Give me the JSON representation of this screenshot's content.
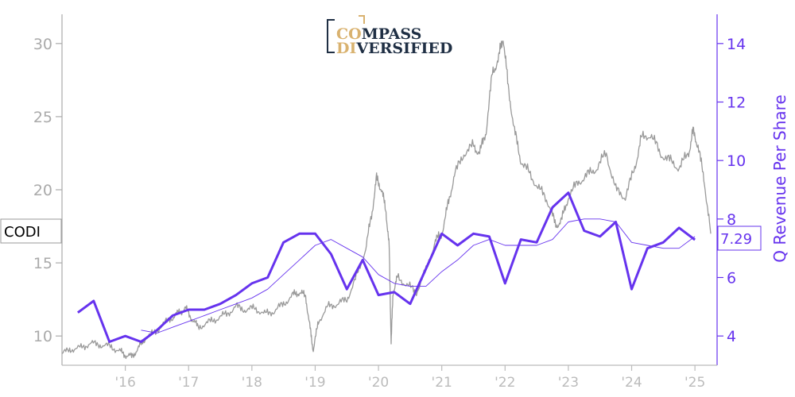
{
  "logo": {
    "line1_a": "CO",
    "line1_b": "MPASS",
    "line2_a": "DI",
    "line2_b": "VERSIFIED"
  },
  "colors": {
    "price": "#999999",
    "revenue": "#6633ee",
    "axis_left": "#aaaaaa",
    "axis_bottom": "#bbbbbb"
  },
  "chart_data": {
    "type": "line",
    "ticker": "CODI",
    "last_value_label": "7.29",
    "ylabel_right": "Q Revenue Per Share",
    "x_range": [
      2015.0,
      2025.35
    ],
    "y_left_range": [
      8.0,
      32.0
    ],
    "y_right_range": [
      3.0,
      15.0
    ],
    "x_ticks": [
      {
        "value": 2016,
        "label": "'16"
      },
      {
        "value": 2017,
        "label": "'17"
      },
      {
        "value": 2018,
        "label": "'18"
      },
      {
        "value": 2019,
        "label": "'19"
      },
      {
        "value": 2020,
        "label": "'20"
      },
      {
        "value": 2021,
        "label": "'21"
      },
      {
        "value": 2022,
        "label": "'22"
      },
      {
        "value": 2023,
        "label": "'23"
      },
      {
        "value": 2024,
        "label": "'24"
      },
      {
        "value": 2025,
        "label": "'25"
      }
    ],
    "y_left_ticks": [
      10,
      15,
      20,
      25,
      30
    ],
    "y_right_ticks": [
      4,
      6,
      8,
      10,
      12,
      14
    ],
    "series": [
      {
        "axis": "left",
        "style": "price",
        "x": [
          2015.0,
          2015.15,
          2015.3,
          2015.45,
          2015.6,
          2015.75,
          2015.9,
          2016.0,
          2016.1,
          2016.2,
          2016.3,
          2016.45,
          2016.6,
          2016.75,
          2016.85,
          2016.95,
          2017.05,
          2017.15,
          2017.3,
          2017.45,
          2017.6,
          2017.75,
          2017.9,
          2018.05,
          2018.2,
          2018.35,
          2018.5,
          2018.65,
          2018.75,
          2018.85,
          2018.92,
          2018.97,
          2019.05,
          2019.2,
          2019.35,
          2019.5,
          2019.65,
          2019.8,
          2019.9,
          2019.97,
          2020.05,
          2020.12,
          2020.17,
          2020.2,
          2020.23,
          2020.3,
          2020.45,
          2020.6,
          2020.75,
          2020.9,
          2021.0,
          2021.1,
          2021.2,
          2021.35,
          2021.5,
          2021.6,
          2021.7,
          2021.8,
          2021.9,
          2021.97,
          2022.05,
          2022.15,
          2022.25,
          2022.4,
          2022.55,
          2022.7,
          2022.8,
          2022.9,
          2023.0,
          2023.15,
          2023.3,
          2023.45,
          2023.6,
          2023.75,
          2023.9,
          2024.05,
          2024.15,
          2024.3,
          2024.45,
          2024.6,
          2024.75,
          2024.9,
          2024.97,
          2025.05,
          2025.15,
          2025.25
        ],
        "y": [
          8.8,
          9.1,
          9.2,
          9.5,
          9.4,
          9.3,
          9.0,
          8.7,
          8.6,
          9.1,
          9.8,
          10.2,
          10.8,
          11.3,
          11.6,
          11.9,
          11.2,
          10.6,
          10.9,
          11.2,
          11.5,
          12.0,
          11.8,
          11.9,
          11.5,
          11.7,
          12.2,
          12.8,
          13.0,
          12.7,
          10.5,
          9.0,
          11.0,
          12.0,
          12.2,
          12.5,
          14.0,
          16.0,
          18.5,
          20.8,
          20.0,
          18.5,
          16.0,
          9.5,
          13.0,
          14.0,
          13.5,
          13.0,
          14.5,
          16.5,
          17.0,
          19.0,
          21.0,
          22.5,
          23.0,
          22.5,
          24.0,
          28.0,
          29.0,
          30.5,
          27.0,
          24.0,
          22.0,
          21.0,
          20.0,
          19.0,
          17.5,
          18.0,
          19.5,
          20.5,
          21.0,
          21.5,
          22.5,
          20.0,
          19.5,
          21.5,
          23.5,
          23.8,
          22.5,
          22.0,
          21.5,
          22.5,
          24.0,
          23.0,
          20.5,
          17.0
        ]
      },
      {
        "axis": "right",
        "style": "revenue_thick",
        "x": [
          2015.25,
          2015.5,
          2015.75,
          2016.0,
          2016.25,
          2016.5,
          2016.75,
          2017.0,
          2017.25,
          2017.5,
          2017.75,
          2018.0,
          2018.25,
          2018.5,
          2018.75,
          2019.0,
          2019.25,
          2019.5,
          2019.75,
          2020.0,
          2020.25,
          2020.5,
          2020.75,
          2021.0,
          2021.25,
          2021.5,
          2021.75,
          2022.0,
          2022.25,
          2022.5,
          2022.75,
          2023.0,
          2023.25,
          2023.5,
          2023.75,
          2024.0,
          2024.25,
          2024.5,
          2024.75,
          2025.0
        ],
        "y": [
          4.8,
          5.2,
          3.8,
          4.0,
          3.8,
          4.2,
          4.7,
          4.9,
          4.9,
          5.1,
          5.4,
          5.8,
          6.0,
          7.2,
          7.5,
          7.5,
          6.8,
          5.6,
          6.6,
          5.4,
          5.5,
          5.1,
          6.3,
          7.5,
          7.1,
          7.5,
          7.4,
          5.8,
          7.3,
          7.2,
          8.4,
          8.9,
          7.6,
          7.4,
          7.9,
          5.6,
          7.0,
          7.2,
          7.7,
          7.29
        ]
      },
      {
        "axis": "right",
        "style": "revenue_thin",
        "x": [
          2016.25,
          2016.5,
          2016.75,
          2017.0,
          2017.25,
          2017.5,
          2017.75,
          2018.0,
          2018.25,
          2018.5,
          2018.75,
          2019.0,
          2019.25,
          2019.5,
          2019.75,
          2020.0,
          2020.25,
          2020.5,
          2020.75,
          2021.0,
          2021.25,
          2021.5,
          2021.75,
          2022.0,
          2022.25,
          2022.5,
          2022.75,
          2023.0,
          2023.25,
          2023.5,
          2023.75,
          2024.0,
          2024.25,
          2024.5,
          2024.75,
          2025.0
        ],
        "y": [
          4.2,
          4.1,
          4.3,
          4.5,
          4.7,
          4.9,
          5.1,
          5.3,
          5.6,
          6.1,
          6.6,
          7.1,
          7.3,
          7.0,
          6.7,
          6.1,
          5.8,
          5.7,
          5.7,
          6.2,
          6.6,
          7.1,
          7.3,
          7.1,
          7.1,
          7.1,
          7.3,
          7.9,
          8.0,
          8.0,
          7.9,
          7.2,
          7.1,
          7.0,
          7.0,
          7.4
        ]
      }
    ]
  }
}
